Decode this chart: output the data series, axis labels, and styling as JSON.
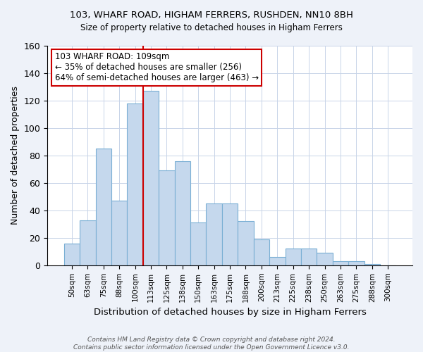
{
  "title1": "103, WHARF ROAD, HIGHAM FERRERS, RUSHDEN, NN10 8BH",
  "title2": "Size of property relative to detached houses in Higham Ferrers",
  "xlabel": "Distribution of detached houses by size in Higham Ferrers",
  "ylabel": "Number of detached properties",
  "bin_labels": [
    "50sqm",
    "63sqm",
    "75sqm",
    "88sqm",
    "100sqm",
    "113sqm",
    "125sqm",
    "138sqm",
    "150sqm",
    "163sqm",
    "175sqm",
    "188sqm",
    "200sqm",
    "213sqm",
    "225sqm",
    "238sqm",
    "250sqm",
    "263sqm",
    "275sqm",
    "288sqm",
    "300sqm"
  ],
  "bar_values": [
    16,
    33,
    85,
    47,
    118,
    127,
    69,
    76,
    31,
    45,
    45,
    32,
    19,
    6,
    12,
    12,
    9,
    3,
    3,
    1,
    0
  ],
  "bar_color": "#c5d8ed",
  "bar_edge_color": "#7aafd4",
  "marker_line_color": "#cc0000",
  "annotation_title": "103 WHARF ROAD: 109sqm",
  "annotation_line1": "← 35% of detached houses are smaller (256)",
  "annotation_line2": "64% of semi-detached houses are larger (463) →",
  "annotation_box_color": "#ffffff",
  "annotation_box_edge": "#cc0000",
  "ylim": [
    0,
    160
  ],
  "yticks": [
    0,
    20,
    40,
    60,
    80,
    100,
    120,
    140,
    160
  ],
  "footer1": "Contains HM Land Registry data © Crown copyright and database right 2024.",
  "footer2": "Contains public sector information licensed under the Open Government Licence v3.0.",
  "bg_color": "#eef2f9",
  "plot_bg_color": "#ffffff",
  "grid_color": "#c8d4e8"
}
